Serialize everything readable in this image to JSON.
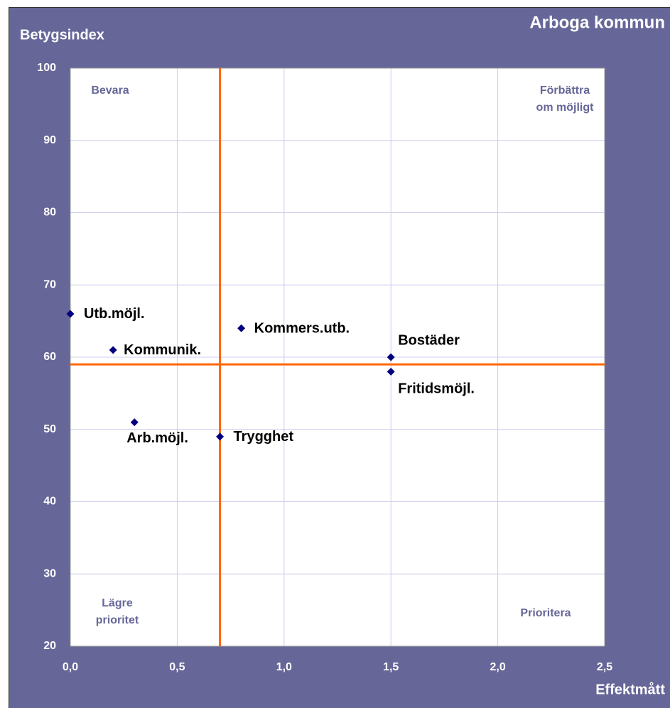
{
  "chart_data": {
    "type": "scatter",
    "title": "Arboga kommun",
    "ylabel": "Betygsindex",
    "xlabel": "Effektmått",
    "series": [
      {
        "name": null,
        "color": "#000080",
        "labels": [
          "Utb.möjl.",
          "Kommunik.",
          "Arb.möjl.",
          "Trygghet",
          "Kommers.utb.",
          "Bostäder",
          "Fritidsmöjl."
        ],
        "x": [
          0.0,
          0.2,
          0.3,
          0.7,
          0.8,
          1.5,
          1.5
        ],
        "values": [
          66,
          61,
          51,
          49,
          64,
          60,
          58
        ]
      }
    ],
    "xlim": [
      0,
      2.5
    ],
    "xticks": [
      {
        "value": 0,
        "label": "0,0"
      },
      {
        "value": 0.5,
        "label": "0,5"
      },
      {
        "value": 1,
        "label": "1,0"
      },
      {
        "value": 1.5,
        "label": "1,5"
      },
      {
        "value": 2,
        "label": "2,0"
      },
      {
        "value": 2.5,
        "label": "2,5"
      }
    ],
    "ylim": [
      20,
      100
    ],
    "yticks": [
      20,
      30,
      40,
      50,
      60,
      70,
      80,
      90,
      100
    ],
    "grid": true,
    "reference_lines": {
      "x": 0.7,
      "y": 59,
      "color": "#ff6600"
    },
    "quadrant_labels": {
      "top_left": [
        "Bevara"
      ],
      "top_right": [
        "Förbättra",
        "om möjligt"
      ],
      "bottom_left": [
        "Lägre",
        "prioritet"
      ],
      "bottom_right": [
        "Prioritera"
      ]
    }
  }
}
